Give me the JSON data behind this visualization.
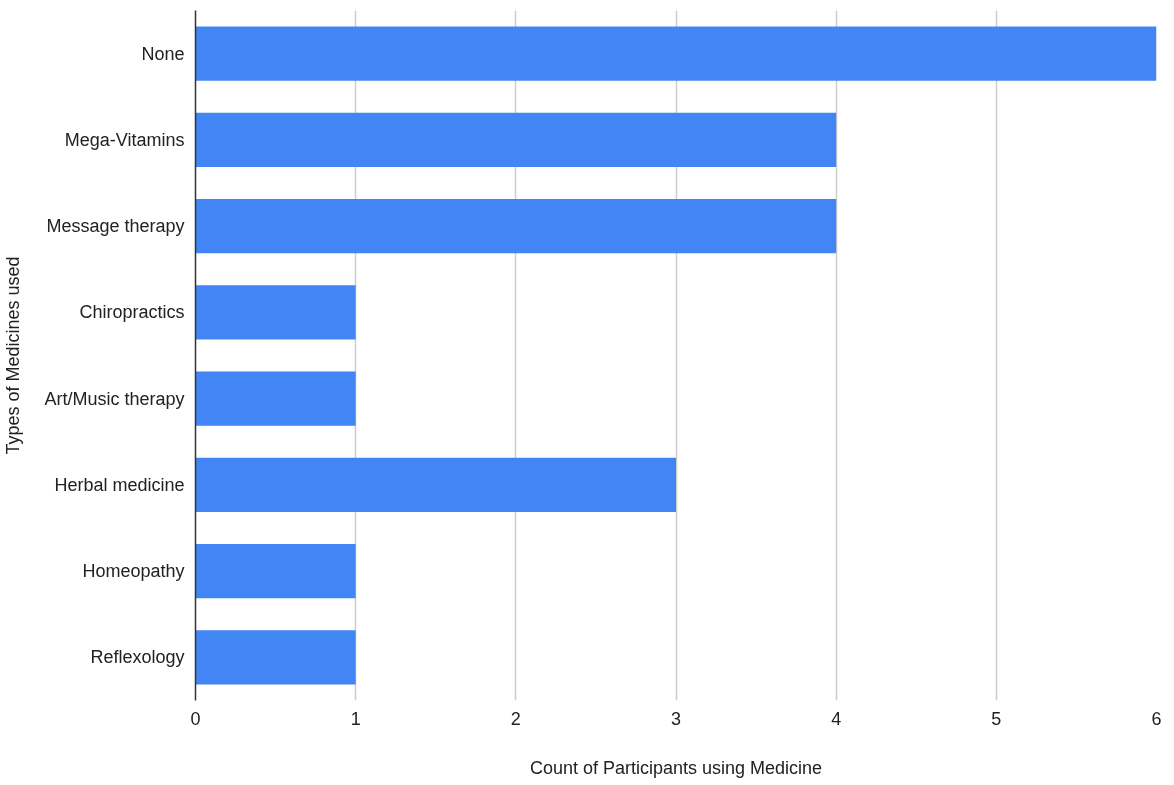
{
  "chart_data": {
    "type": "bar",
    "orientation": "horizontal",
    "xlabel": "Count of Participants using Medicine",
    "ylabel": "Types of Medicines used",
    "categories": [
      "None",
      "Mega-Vitamins",
      "Message therapy",
      "Chiropractics",
      "Art/Music therapy",
      "Herbal medicine",
      "Homeopathy",
      "Reflexology"
    ],
    "values": [
      6,
      4,
      4,
      1,
      1,
      3,
      1,
      1
    ],
    "color": "#4285f4",
    "xlim": [
      0,
      6
    ],
    "xticks": [
      0,
      1,
      2,
      3,
      4,
      5,
      6
    ],
    "grid": "x"
  }
}
